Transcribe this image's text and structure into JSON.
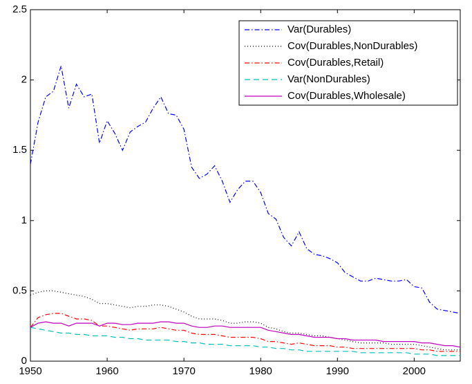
{
  "chart_data": {
    "type": "line",
    "x": [
      1950,
      1951,
      1952,
      1953,
      1954,
      1955,
      1956,
      1957,
      1958,
      1959,
      1960,
      1961,
      1962,
      1963,
      1964,
      1965,
      1966,
      1967,
      1968,
      1969,
      1970,
      1971,
      1972,
      1973,
      1974,
      1975,
      1976,
      1977,
      1978,
      1979,
      1980,
      1981,
      1982,
      1983,
      1984,
      1985,
      1986,
      1987,
      1988,
      1989,
      1990,
      1991,
      1992,
      1993,
      1994,
      1995,
      1996,
      1997,
      1998,
      1999,
      2000,
      2001,
      2002,
      2003,
      2004,
      2005,
      2006
    ],
    "series": [
      {
        "name": "Var(Durables)",
        "color": "#0000ff",
        "dash": "dash-dot",
        "values": [
          1.4,
          1.7,
          1.88,
          1.92,
          2.1,
          1.8,
          1.97,
          1.88,
          1.9,
          1.55,
          1.71,
          1.62,
          1.5,
          1.63,
          1.67,
          1.7,
          1.8,
          1.88,
          1.76,
          1.75,
          1.65,
          1.38,
          1.3,
          1.33,
          1.39,
          1.28,
          1.13,
          1.22,
          1.28,
          1.28,
          1.2,
          1.05,
          1.01,
          0.88,
          0.82,
          0.92,
          0.8,
          0.76,
          0.75,
          0.73,
          0.7,
          0.63,
          0.6,
          0.57,
          0.57,
          0.59,
          0.58,
          0.57,
          0.57,
          0.58,
          0.53,
          0.52,
          0.42,
          0.37,
          0.36,
          0.35,
          0.34
        ]
      },
      {
        "name": "Cov(Durables,NonDurables)",
        "color": "#000000",
        "dash": "dotted",
        "values": [
          0.47,
          0.49,
          0.5,
          0.5,
          0.49,
          0.48,
          0.47,
          0.46,
          0.44,
          0.41,
          0.41,
          0.4,
          0.39,
          0.38,
          0.39,
          0.39,
          0.4,
          0.4,
          0.39,
          0.37,
          0.35,
          0.32,
          0.3,
          0.3,
          0.3,
          0.29,
          0.27,
          0.27,
          0.28,
          0.28,
          0.27,
          0.24,
          0.23,
          0.21,
          0.2,
          0.2,
          0.19,
          0.18,
          0.18,
          0.17,
          0.16,
          0.15,
          0.14,
          0.13,
          0.13,
          0.13,
          0.13,
          0.12,
          0.12,
          0.12,
          0.12,
          0.11,
          0.1,
          0.09,
          0.08,
          0.08,
          0.08
        ]
      },
      {
        "name": "Cov(Durables,Retail)",
        "color": "#ff0000",
        "dash": "dash-dot",
        "values": [
          0.24,
          0.31,
          0.33,
          0.34,
          0.34,
          0.32,
          0.3,
          0.3,
          0.29,
          0.25,
          0.25,
          0.24,
          0.23,
          0.22,
          0.23,
          0.23,
          0.23,
          0.24,
          0.23,
          0.22,
          0.22,
          0.2,
          0.19,
          0.19,
          0.19,
          0.18,
          0.17,
          0.17,
          0.17,
          0.17,
          0.16,
          0.14,
          0.14,
          0.13,
          0.12,
          0.13,
          0.12,
          0.11,
          0.11,
          0.11,
          0.1,
          0.1,
          0.09,
          0.09,
          0.09,
          0.09,
          0.09,
          0.09,
          0.09,
          0.09,
          0.09,
          0.08,
          0.08,
          0.07,
          0.07,
          0.07,
          0.07
        ]
      },
      {
        "name": "Var(NonDurables)",
        "color": "#00bfbf",
        "dash": "dashed",
        "values": [
          0.24,
          0.23,
          0.22,
          0.21,
          0.2,
          0.2,
          0.19,
          0.19,
          0.18,
          0.18,
          0.18,
          0.17,
          0.17,
          0.16,
          0.16,
          0.15,
          0.15,
          0.15,
          0.15,
          0.14,
          0.14,
          0.13,
          0.13,
          0.12,
          0.12,
          0.12,
          0.11,
          0.11,
          0.11,
          0.11,
          0.1,
          0.1,
          0.09,
          0.09,
          0.08,
          0.08,
          0.07,
          0.07,
          0.07,
          0.07,
          0.07,
          0.07,
          0.07,
          0.06,
          0.06,
          0.06,
          0.06,
          0.06,
          0.06,
          0.06,
          0.05,
          0.05,
          0.05,
          0.04,
          0.04,
          0.04,
          0.04
        ]
      },
      {
        "name": "Cov(Durables,Wholesale)",
        "color": "#bf00bf",
        "dash": "solid",
        "values": [
          0.24,
          0.27,
          0.28,
          0.27,
          0.27,
          0.25,
          0.27,
          0.27,
          0.27,
          0.25,
          0.27,
          0.27,
          0.26,
          0.26,
          0.27,
          0.27,
          0.27,
          0.28,
          0.28,
          0.27,
          0.27,
          0.25,
          0.24,
          0.24,
          0.25,
          0.25,
          0.24,
          0.24,
          0.24,
          0.24,
          0.24,
          0.22,
          0.21,
          0.2,
          0.19,
          0.19,
          0.18,
          0.17,
          0.17,
          0.17,
          0.16,
          0.16,
          0.15,
          0.15,
          0.15,
          0.15,
          0.14,
          0.14,
          0.14,
          0.14,
          0.14,
          0.13,
          0.13,
          0.12,
          0.11,
          0.11,
          0.1
        ]
      }
    ],
    "xlim": [
      1950,
      2006
    ],
    "xticks": [
      1950,
      1960,
      1970,
      1980,
      1990,
      2000
    ],
    "ylim": [
      0,
      2.5
    ],
    "yticks": [
      0,
      0.5,
      1,
      1.5,
      2,
      2.5
    ],
    "legend": "upper right"
  }
}
